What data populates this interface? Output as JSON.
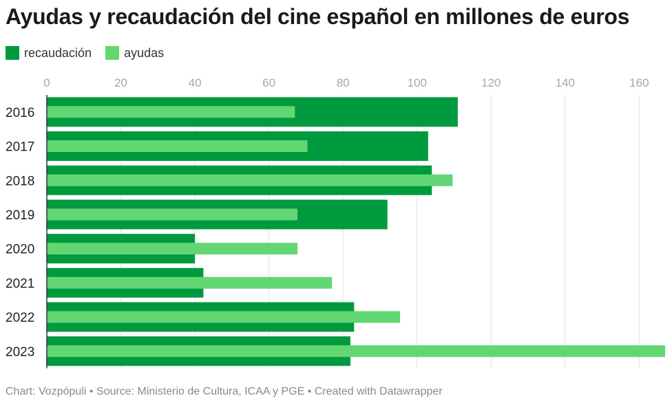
{
  "title": "Ayudas y recaudación del cine español en millones de euros",
  "footer": "Chart: Vozpópuli • Source: Ministerio de Cultura, ICAA y PGE • Created with Datawrapper",
  "legend": [
    {
      "label": "recaudación",
      "color": "#009a3e"
    },
    {
      "label": "ayudas",
      "color": "#62d672"
    }
  ],
  "chart_data": {
    "type": "bar",
    "orientation": "horizontal",
    "categories": [
      "2016",
      "2017",
      "2018",
      "2019",
      "2020",
      "2021",
      "2022",
      "2023"
    ],
    "series": [
      {
        "name": "recaudación",
        "color": "#009a3e",
        "values": [
          111,
          103,
          104,
          92,
          40,
          42.3,
          83,
          82
        ]
      },
      {
        "name": "ayudas",
        "color": "#62d672",
        "values": [
          67,
          70.4,
          109.6,
          67.7,
          67.7,
          77,
          95.4,
          167
        ]
      }
    ],
    "xlim": [
      0,
      167
    ],
    "xticks": [
      0,
      20,
      40,
      60,
      80,
      100,
      120,
      140,
      160
    ],
    "grid": true,
    "axis_position": "top",
    "legend_position": "top-left"
  }
}
